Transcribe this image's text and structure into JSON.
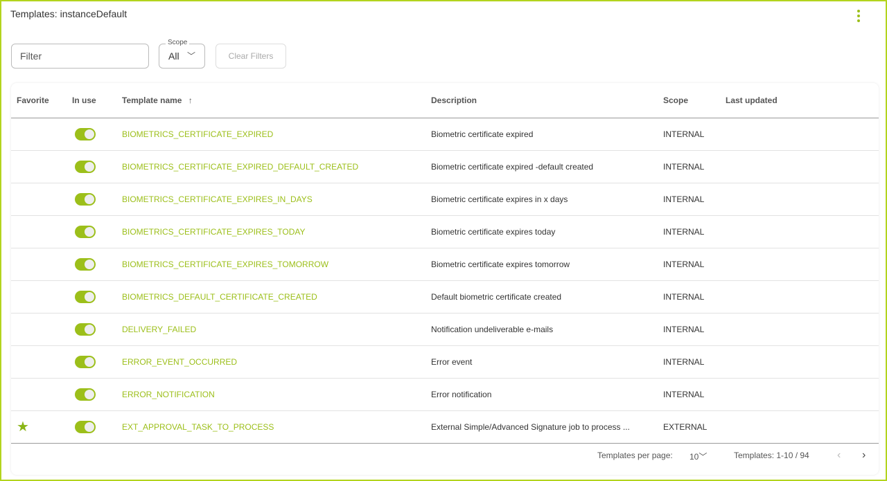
{
  "header": {
    "title": "Templates: instanceDefault",
    "menu_icon": "kebab-vertical-icon"
  },
  "filters": {
    "filter_placeholder": "Filter",
    "scope_label": "Scope",
    "scope_value": "All",
    "clear_label": "Clear Filters"
  },
  "table": {
    "columns": [
      "Favorite",
      "In use",
      "Template name",
      "Description",
      "Scope",
      "Last updated"
    ],
    "sort_icon": "↑",
    "rows": [
      {
        "favorite": false,
        "in_use": true,
        "name": "BIOMETRICS_CERTIFICATE_EXPIRED",
        "description": "Biometric certificate expired",
        "scope": "INTERNAL",
        "updated": ""
      },
      {
        "favorite": false,
        "in_use": true,
        "name": "BIOMETRICS_CERTIFICATE_EXPIRED_DEFAULT_CREATED",
        "description": "Biometric certificate expired -default created",
        "scope": "INTERNAL",
        "updated": ""
      },
      {
        "favorite": false,
        "in_use": true,
        "name": "BIOMETRICS_CERTIFICATE_EXPIRES_IN_DAYS",
        "description": "Biometric certificate expires in x days",
        "scope": "INTERNAL",
        "updated": ""
      },
      {
        "favorite": false,
        "in_use": true,
        "name": "BIOMETRICS_CERTIFICATE_EXPIRES_TODAY",
        "description": "Biometric certificate expires today",
        "scope": "INTERNAL",
        "updated": ""
      },
      {
        "favorite": false,
        "in_use": true,
        "name": "BIOMETRICS_CERTIFICATE_EXPIRES_TOMORROW",
        "description": "Biometric certificate expires tomorrow",
        "scope": "INTERNAL",
        "updated": ""
      },
      {
        "favorite": false,
        "in_use": true,
        "name": "BIOMETRICS_DEFAULT_CERTIFICATE_CREATED",
        "description": "Default biometric certificate created",
        "scope": "INTERNAL",
        "updated": ""
      },
      {
        "favorite": false,
        "in_use": true,
        "name": "DELIVERY_FAILED",
        "description": "Notification undeliverable e-mails",
        "scope": "INTERNAL",
        "updated": ""
      },
      {
        "favorite": false,
        "in_use": true,
        "name": "ERROR_EVENT_OCCURRED",
        "description": "Error event",
        "scope": "INTERNAL",
        "updated": ""
      },
      {
        "favorite": false,
        "in_use": true,
        "name": "ERROR_NOTIFICATION",
        "description": "Error notification",
        "scope": "INTERNAL",
        "updated": ""
      },
      {
        "favorite": true,
        "in_use": true,
        "name": "EXT_APPROVAL_TASK_TO_PROCESS",
        "description": "External Simple/Advanced Signature job to process ...",
        "scope": "EXTERNAL",
        "updated": ""
      }
    ]
  },
  "pagination": {
    "per_page_label": "Templates per page:",
    "per_page_value": "10",
    "range": "Templates: 1-10 / 94"
  },
  "colors": {
    "accent": "#9cbf1a",
    "border": "#b3d41e"
  }
}
